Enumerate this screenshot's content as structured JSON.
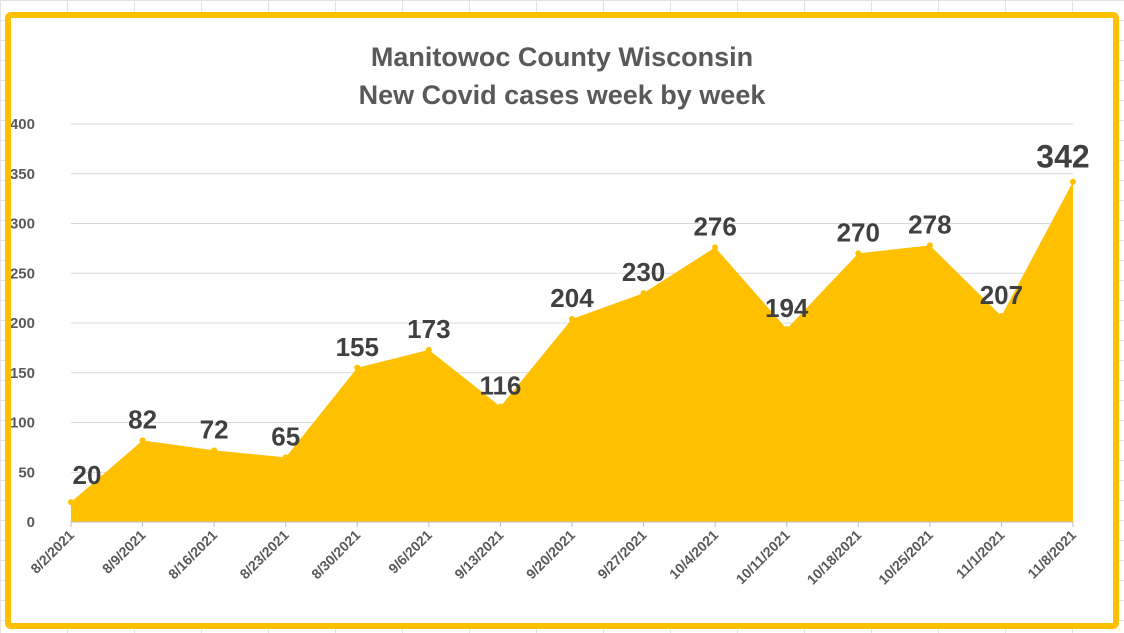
{
  "chart_data": {
    "type": "area",
    "title": [
      "Manitowoc County Wisconsin",
      "New Covid cases week by week"
    ],
    "categories": [
      "8/2/2021",
      "8/9/2021",
      "8/16/2021",
      "8/23/2021",
      "8/30/2021",
      "9/6/2021",
      "9/13/2021",
      "9/20/2021",
      "9/27/2021",
      "10/4/2021",
      "10/11/2021",
      "10/18/2021",
      "10/25/2021",
      "11/1/2021",
      "11/8/2021"
    ],
    "values": [
      20,
      82,
      72,
      65,
      155,
      173,
      116,
      204,
      230,
      276,
      194,
      270,
      278,
      207,
      342
    ],
    "ylim": [
      0,
      400
    ],
    "yticks": [
      0,
      50,
      100,
      150,
      200,
      250,
      300,
      350,
      400
    ],
    "grid": true,
    "fill_color": "#ffc000",
    "label_color": "#404040"
  }
}
